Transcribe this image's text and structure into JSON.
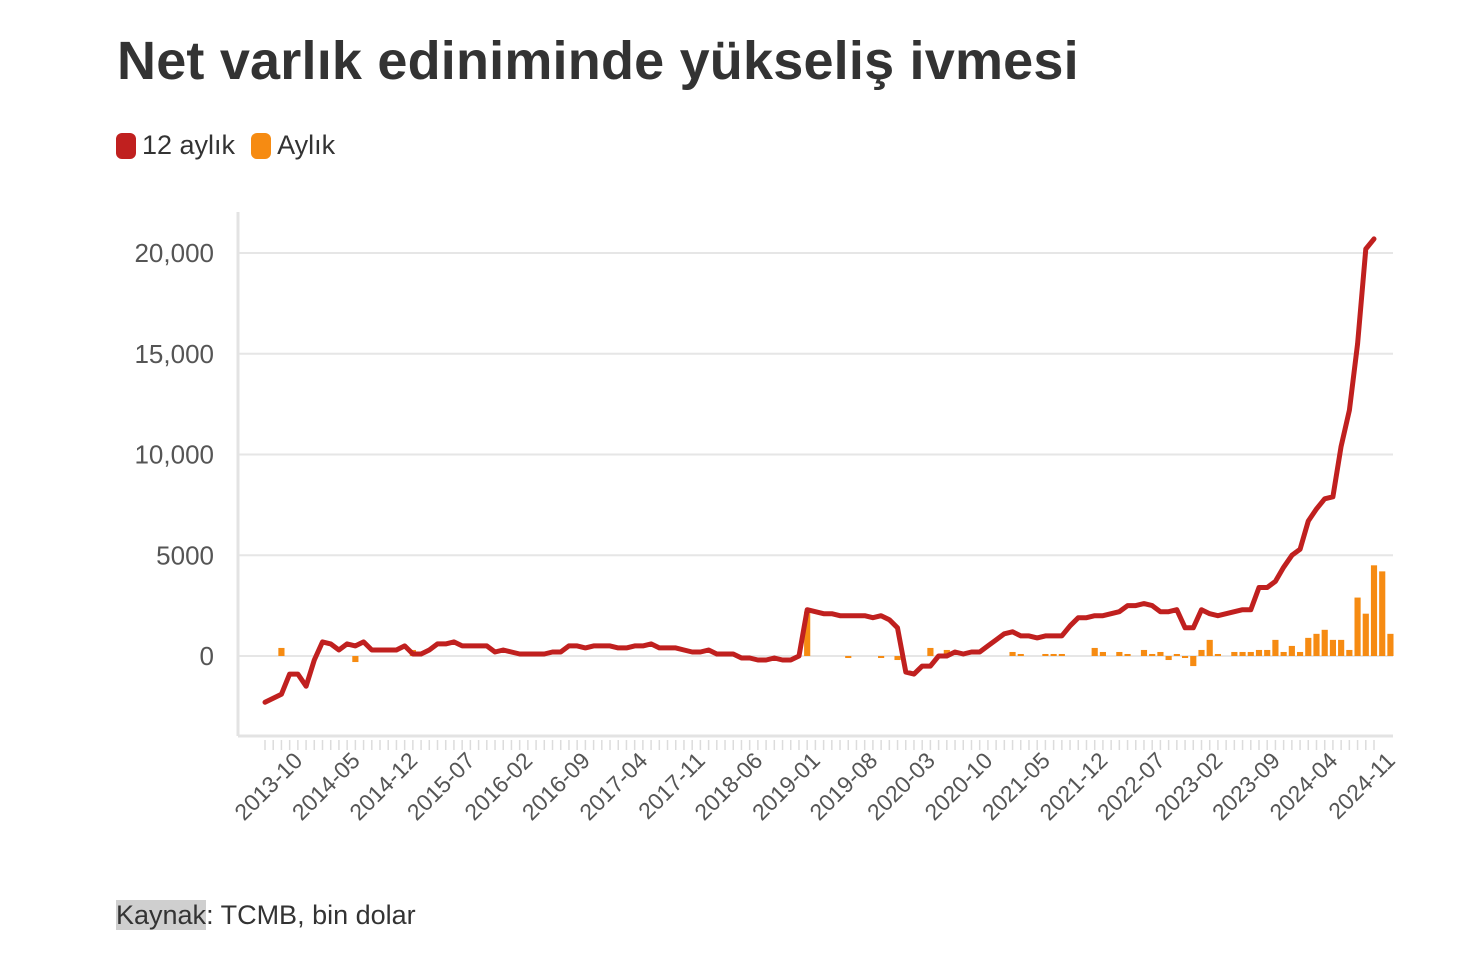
{
  "title": "Net varlık ediniminde yükseliş ivmesi",
  "legend": [
    {
      "label": "12 aylık",
      "color": "#c0201f"
    },
    {
      "label": "Aylık",
      "color": "#f68b12"
    }
  ],
  "source": {
    "label": "Kaynak",
    "text": ": TCMB, bin dolar"
  },
  "chart_data": {
    "type": "bar+line",
    "y_ticks": [
      0,
      5000,
      10000,
      15000,
      20000
    ],
    "y_tick_labels": [
      "0",
      "5000",
      "10,000",
      "15,000",
      "20,000"
    ],
    "ylim": [
      -3800,
      21000
    ],
    "x_start": "2013-06",
    "x_end": "2024-12",
    "x_tick_labels": [
      "2013-10",
      "2014-05",
      "2014-12",
      "2015-07",
      "2016-02",
      "2016-09",
      "2017-04",
      "2017-11",
      "2018-06",
      "2019-01",
      "2019-08",
      "2020-03",
      "2020-10",
      "2021-05",
      "2021-12",
      "2022-07",
      "2023-02",
      "2023-09",
      "2024-04",
      "2024-11"
    ],
    "grid": true,
    "legend_position": "top-left",
    "series": [
      {
        "name": "12 aylık",
        "type": "line",
        "color": "#c0201f",
        "values": [
          -2300,
          -2100,
          -1900,
          -900,
          -900,
          -1500,
          -200,
          700,
          600,
          300,
          600,
          500,
          700,
          300,
          300,
          300,
          300,
          500,
          100,
          100,
          300,
          600,
          600,
          700,
          500,
          500,
          500,
          500,
          200,
          300,
          200,
          100,
          100,
          100,
          100,
          200,
          200,
          500,
          500,
          400,
          500,
          500,
          500,
          400,
          400,
          500,
          500,
          600,
          400,
          400,
          400,
          300,
          200,
          200,
          300,
          100,
          100,
          100,
          -100,
          -100,
          -200,
          -200,
          -100,
          -200,
          -200,
          0,
          2300,
          2200,
          2100,
          2100,
          2000,
          2000,
          2000,
          2000,
          1900,
          2000,
          1800,
          1400,
          -800,
          -900,
          -500,
          -500,
          0,
          0,
          200,
          100,
          200,
          200,
          500,
          800,
          1100,
          1200,
          1000,
          1000,
          900,
          1000,
          1000,
          1000,
          1500,
          1900,
          1900,
          2000,
          2000,
          2100,
          2200,
          2500,
          2500,
          2600,
          2500,
          2200,
          2200,
          2300,
          1400,
          1400,
          2300,
          2100,
          2000,
          2100,
          2200,
          2300,
          2300,
          3400,
          3400,
          3700,
          4400,
          5000,
          5300,
          6700,
          7300,
          7800,
          7900,
          10400,
          12200,
          15500,
          20200,
          20700
        ]
      },
      {
        "name": "Aylık",
        "type": "bar",
        "color": "#f68b12",
        "values": [
          0,
          0,
          400,
          0,
          0,
          0,
          0,
          0,
          0,
          0,
          0,
          -300,
          0,
          0,
          0,
          0,
          0,
          0,
          300,
          0,
          0,
          0,
          0,
          0,
          0,
          0,
          0,
          0,
          0,
          0,
          0,
          0,
          0,
          0,
          0,
          0,
          0,
          0,
          0,
          0,
          0,
          0,
          0,
          0,
          0,
          0,
          0,
          0,
          0,
          0,
          0,
          0,
          0,
          0,
          0,
          0,
          0,
          0,
          0,
          0,
          0,
          0,
          0,
          0,
          0,
          0,
          2200,
          0,
          0,
          0,
          0,
          -100,
          0,
          0,
          0,
          -100,
          0,
          -200,
          0,
          0,
          0,
          400,
          0,
          300,
          0,
          0,
          0,
          0,
          0,
          0,
          0,
          200,
          100,
          0,
          0,
          100,
          100,
          100,
          0,
          0,
          0,
          400,
          200,
          0,
          200,
          100,
          0,
          300,
          100,
          200,
          -200,
          100,
          -100,
          -500,
          300,
          800,
          100,
          0,
          200,
          200,
          200,
          300,
          300,
          800,
          200,
          500,
          200,
          900,
          1100,
          1300,
          800,
          800,
          300,
          2900,
          2100,
          4500,
          4200,
          1100
        ]
      }
    ]
  }
}
